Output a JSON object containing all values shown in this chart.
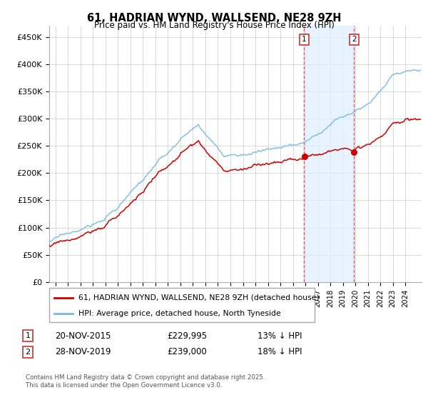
{
  "title": "61, HADRIAN WYND, WALLSEND, NE28 9ZH",
  "subtitle": "Price paid vs. HM Land Registry's House Price Index (HPI)",
  "ylabel_ticks": [
    "£0",
    "£50K",
    "£100K",
    "£150K",
    "£200K",
    "£250K",
    "£300K",
    "£350K",
    "£400K",
    "£450K"
  ],
  "ytick_values": [
    0,
    50000,
    100000,
    150000,
    200000,
    250000,
    300000,
    350000,
    400000,
    450000
  ],
  "ylim": [
    0,
    470000
  ],
  "xlim_start": 1995.5,
  "xlim_end": 2025.3,
  "hpi_color": "#7ab8e0",
  "price_color": "#cc0000",
  "background_color": "#ffffff",
  "grid_color": "#cccccc",
  "shade_color": "#ddeeff",
  "purchase1_x": 2015.9,
  "purchase1_y": 229995,
  "purchase2_x": 2019.9,
  "purchase2_y": 239000,
  "legend_entries": [
    "61, HADRIAN WYND, WALLSEND, NE28 9ZH (detached house)",
    "HPI: Average price, detached house, North Tyneside"
  ],
  "note1_label": "1",
  "note1_date": "20-NOV-2015",
  "note1_price": "£229,995",
  "note1_hpi": "13% ↓ HPI",
  "note2_label": "2",
  "note2_date": "28-NOV-2019",
  "note2_price": "£239,000",
  "note2_hpi": "18% ↓ HPI",
  "footer": "Contains HM Land Registry data © Crown copyright and database right 2025.\nThis data is licensed under the Open Government Licence v3.0."
}
